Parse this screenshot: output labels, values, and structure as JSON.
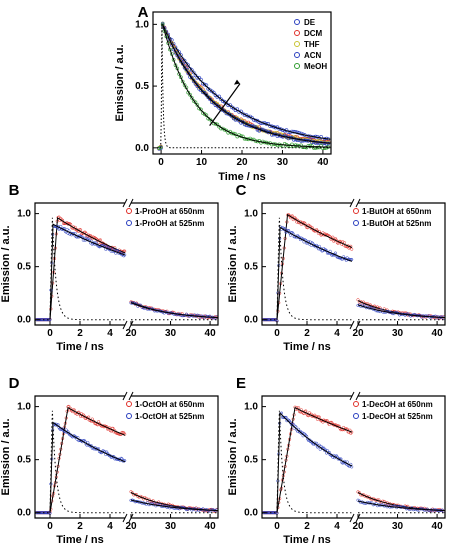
{
  "chart_data": [
    {
      "panel": "A",
      "type": "line",
      "xlabel": "Time / ns",
      "ylabel": "Emission / a.u.",
      "xlim": [
        -2,
        42
      ],
      "ylim": [
        -0.05,
        1.1
      ],
      "xticks": [
        0,
        10,
        20,
        30,
        40
      ],
      "yticks": [
        0.0,
        0.5,
        1.0
      ],
      "legend_position": "top-right",
      "arrow": "diagonal arrow pointing up-right across the decay curves",
      "series": [
        {
          "name": "DE",
          "color": "#2a3fbf",
          "tau": 15.5
        },
        {
          "name": "DCM",
          "color": "#e0302a",
          "tau": 13.0
        },
        {
          "name": "THF",
          "color": "#c8c432",
          "tau": 12.8
        },
        {
          "name": "ACN",
          "color": "#2a3fbf",
          "tau": 12.5
        },
        {
          "name": "MeOH",
          "color": "#2d9a2d",
          "tau": 8.0
        }
      ],
      "irf_decay_ns": 0.3
    },
    {
      "panel": "B",
      "type": "line",
      "xlabel": "Time / ns",
      "ylabel": "Emission / a.u.",
      "axis_break": true,
      "x_left": [
        -1,
        5
      ],
      "x_right": [
        20,
        42
      ],
      "xticks_left": [
        0,
        2,
        4
      ],
      "xticks_right": [
        20,
        30,
        40
      ],
      "ylim": [
        -0.05,
        1.1
      ],
      "yticks": [
        0.0,
        0.5,
        1.0
      ],
      "series": [
        {
          "name": "1-ProOH at 650nm",
          "color": "#e0302a",
          "values_at": {
            "0.5": 0.96,
            "5": 0.63,
            "20": 0.17,
            "42": 0.02
          }
        },
        {
          "name": "1-ProOH at 525nm",
          "color": "#2a3fbf",
          "values_at": {
            "0.2": 0.9,
            "5": 0.61,
            "20": 0.16,
            "42": 0.02
          }
        }
      ]
    },
    {
      "panel": "C",
      "type": "line",
      "xlabel": "Time / ns",
      "ylabel": "Emission / a.u.",
      "axis_break": true,
      "x_left": [
        -1,
        5
      ],
      "x_right": [
        20,
        42
      ],
      "xticks_left": [
        0,
        2,
        4
      ],
      "xticks_right": [
        20,
        30,
        40
      ],
      "ylim": [
        -0.05,
        1.1
      ],
      "yticks": [
        0.0,
        0.5,
        1.0
      ],
      "series": [
        {
          "name": "1-ButOH at 650nm",
          "color": "#e0302a",
          "values_at": {
            "0.7": 0.99,
            "5": 0.68,
            "20": 0.18,
            "42": 0.02
          }
        },
        {
          "name": "1-ButOH at 525nm",
          "color": "#2a3fbf",
          "values_at": {
            "0.2": 0.87,
            "5": 0.55,
            "20": 0.14,
            "42": 0.02
          }
        }
      ]
    },
    {
      "panel": "D",
      "type": "line",
      "xlabel": "Time / ns",
      "ylabel": "Emission / a.u.",
      "axis_break": true,
      "x_left": [
        -1,
        5
      ],
      "x_right": [
        20,
        42
      ],
      "xticks_left": [
        0,
        2,
        4
      ],
      "xticks_right": [
        20,
        30,
        40
      ],
      "ylim": [
        -0.05,
        1.1
      ],
      "yticks": [
        0.0,
        0.5,
        1.0
      ],
      "series": [
        {
          "name": "1-OctOH at 650nm",
          "color": "#e0302a",
          "values_at": {
            "1.2": 0.99,
            "5": 0.73,
            "20": 0.19,
            "42": 0.02
          }
        },
        {
          "name": "1-OctOH at 525nm",
          "color": "#2a3fbf",
          "values_at": {
            "0.2": 0.85,
            "5": 0.48,
            "20": 0.12,
            "42": 0.02
          }
        }
      ]
    },
    {
      "panel": "E",
      "type": "line",
      "xlabel": "Time / ns",
      "ylabel": "Emission / a.u.",
      "axis_break": true,
      "x_left": [
        -1,
        5
      ],
      "x_right": [
        20,
        42
      ],
      "xticks_left": [
        0,
        2,
        4
      ],
      "xticks_right": [
        20,
        30,
        40
      ],
      "ylim": [
        -0.05,
        1.1
      ],
      "yticks": [
        0.0,
        0.5,
        1.0
      ],
      "series": [
        {
          "name": "1-DecOH at 650nm",
          "color": "#e0302a",
          "values_at": {
            "1.2": 0.99,
            "5": 0.76,
            "20": 0.19,
            "42": 0.02
          }
        },
        {
          "name": "1-DecOH at 525nm",
          "color": "#2a3fbf",
          "values_at": {
            "0.2": 0.94,
            "5": 0.44,
            "20": 0.11,
            "42": 0.02
          }
        }
      ]
    }
  ]
}
